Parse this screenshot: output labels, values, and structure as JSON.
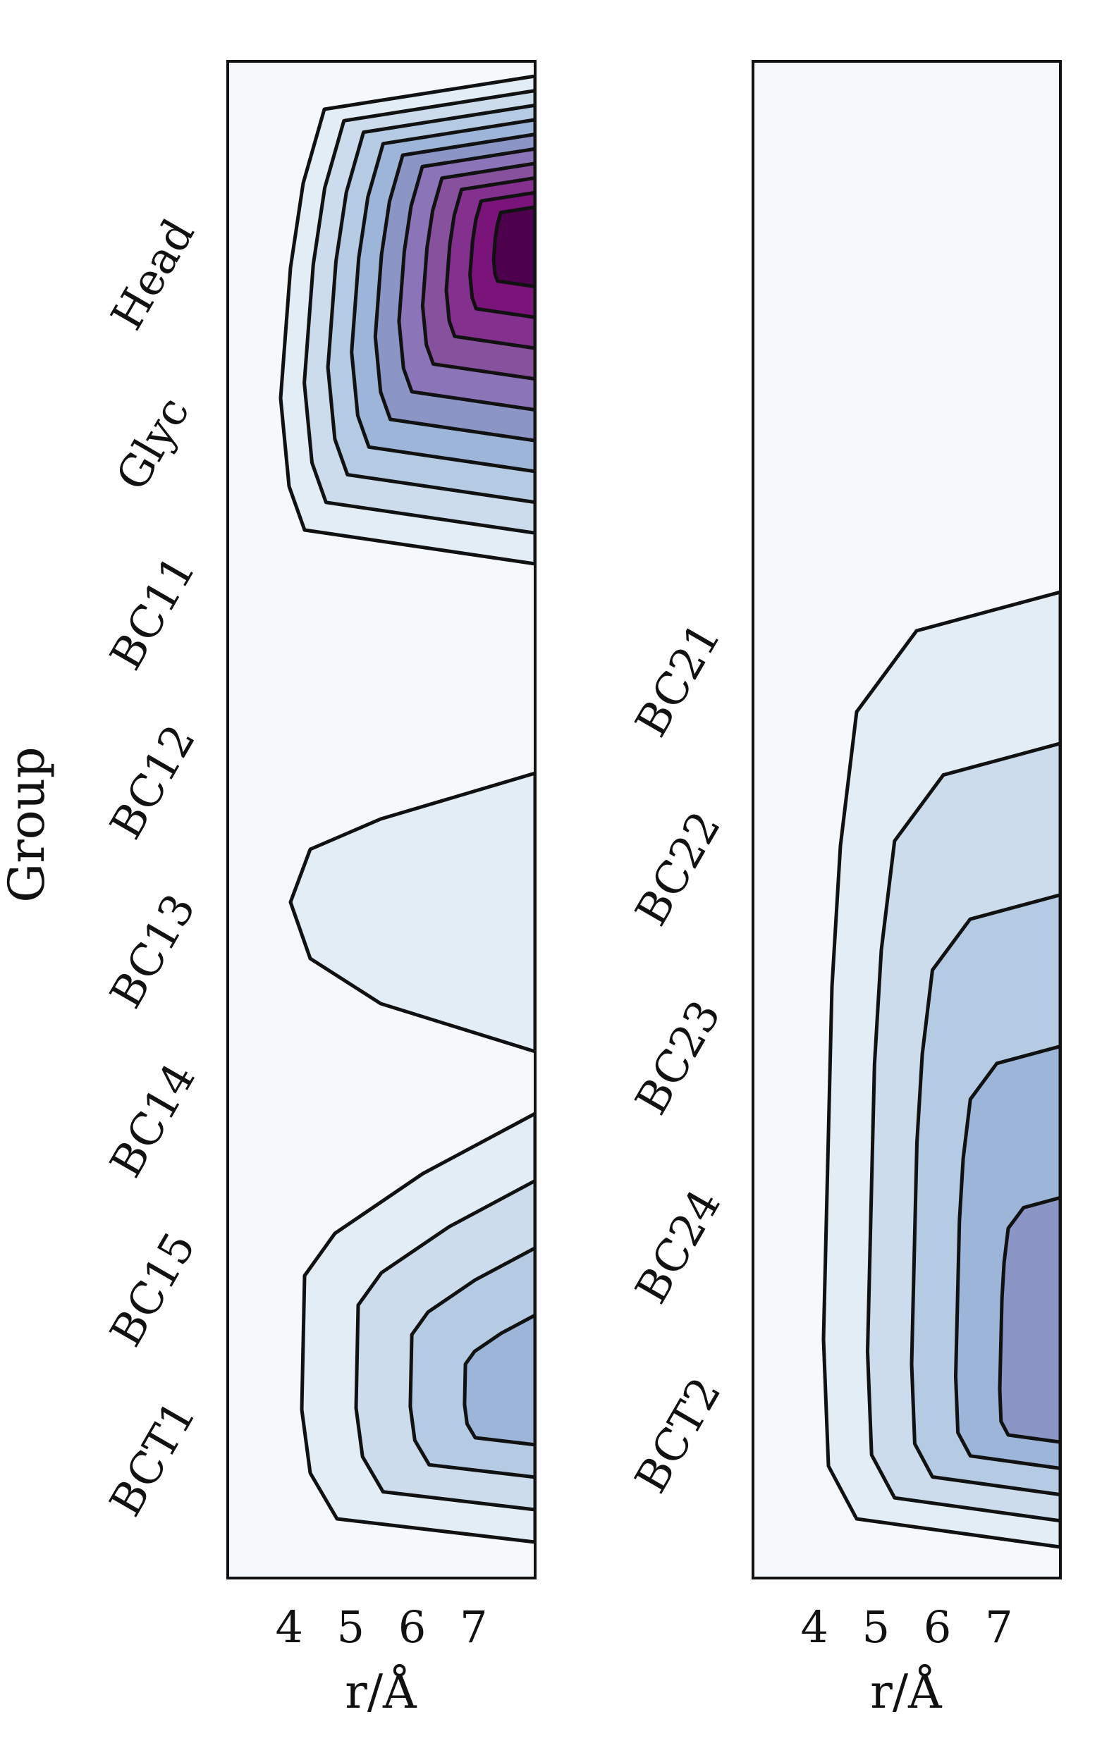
{
  "chart_data": [
    {
      "type": "contour",
      "panel": "left",
      "title": "",
      "xlabel": "r/Å",
      "ylabel": "Group",
      "x_ticks": [
        4,
        5,
        6,
        7
      ],
      "xlim": [
        3,
        8
      ],
      "y_ticks": [
        "Head",
        "Glyc",
        "BC11",
        "BC12",
        "BC13",
        "BC14",
        "BC15",
        "BCT1"
      ],
      "colormap": [
        "#f5f9fc",
        "#e2edf5",
        "#ccdcec",
        "#b5cbe4",
        "#9cb5d8",
        "#8c96c6",
        "#8b74b8",
        "#88519e",
        "#84308f",
        "#7a147a",
        "#4d004b"
      ],
      "regions": [
        {
          "name": "head-glyc",
          "max_level": 10
        },
        {
          "name": "bc13",
          "max_level": 1
        },
        {
          "name": "bct1",
          "max_level": 4
        }
      ]
    },
    {
      "type": "contour",
      "panel": "right",
      "title": "",
      "xlabel": "r/Å",
      "ylabel": "",
      "x_ticks": [
        4,
        5,
        6,
        7
      ],
      "xlim": [
        3,
        8
      ],
      "y_ticks": [
        "BC21",
        "BC22",
        "BC23",
        "BC24",
        "BCT2"
      ],
      "colormap": [
        "#f5f9fc",
        "#e2edf5",
        "#ccdcec",
        "#b5cbe4",
        "#9cb5d8",
        "#8c96c6"
      ],
      "regions": [
        {
          "name": "bc2-tail",
          "max_level": 5
        }
      ]
    }
  ]
}
